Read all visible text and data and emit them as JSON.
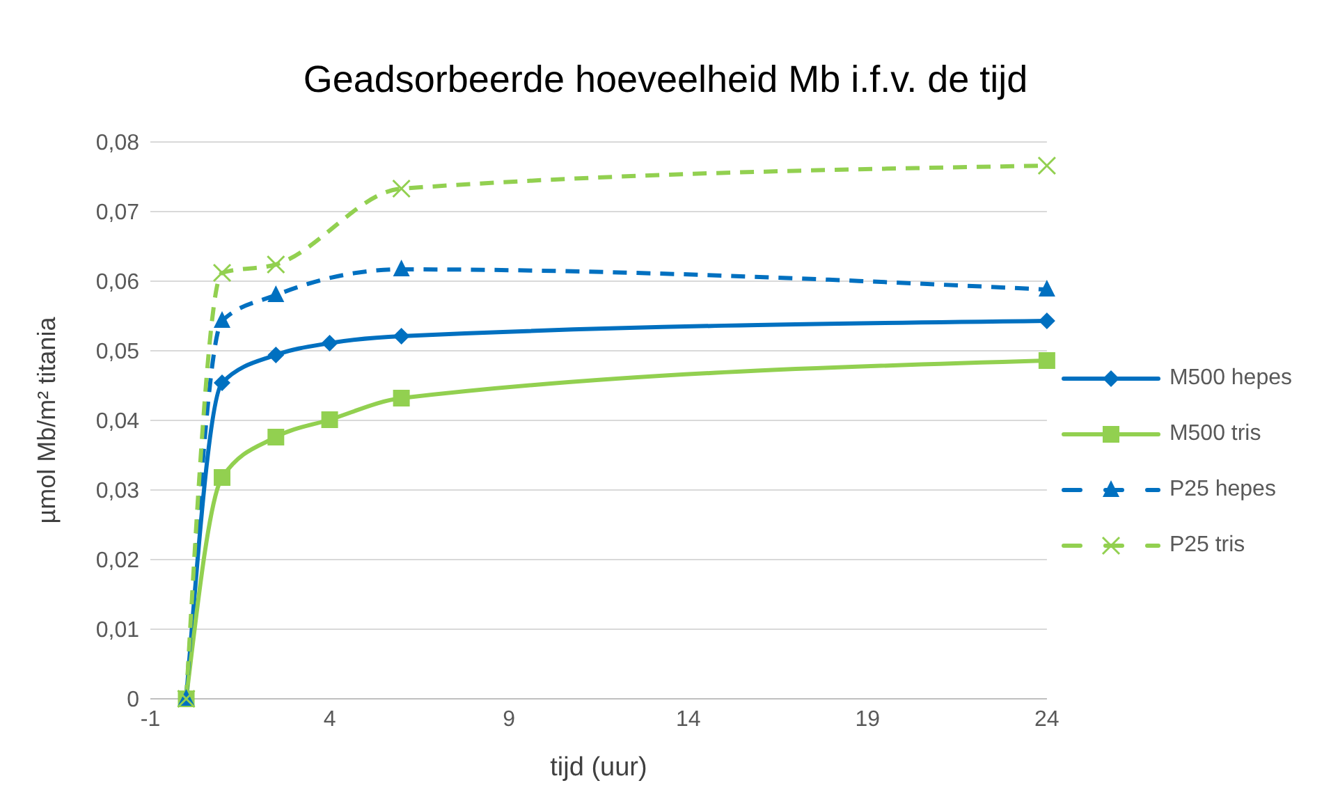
{
  "chart_data": {
    "type": "line",
    "title": "Geadsorbeerde hoeveelheid Mb i.f.v. de tijd",
    "xlabel": "tijd (uur)",
    "ylabel": "µmol Mb/m² titania",
    "xlim": [
      -1,
      24
    ],
    "xticks": [
      -1,
      4,
      9,
      14,
      19,
      24
    ],
    "ylim": [
      0,
      0.08
    ],
    "yticks": [
      {
        "value": 0,
        "label": "0"
      },
      {
        "value": 0.01,
        "label": "0,01"
      },
      {
        "value": 0.02,
        "label": "0,02"
      },
      {
        "value": 0.03,
        "label": "0,03"
      },
      {
        "value": 0.04,
        "label": "0,04"
      },
      {
        "value": 0.05,
        "label": "0,05"
      },
      {
        "value": 0.06,
        "label": "0,06"
      },
      {
        "value": 0.07,
        "label": "0,07"
      },
      {
        "value": 0.08,
        "label": "0,08"
      }
    ],
    "grid": "y",
    "legend": "right",
    "series": [
      {
        "name": "M500 hepes",
        "color": "#0070c0",
        "marker": "diamond",
        "line_style": "solid",
        "x": [
          0,
          1,
          2.5,
          4,
          6,
          24
        ],
        "values": [
          0,
          0.0454,
          0.0494,
          0.0511,
          0.0521,
          0.0543
        ]
      },
      {
        "name": "M500 tris",
        "color": "#92d050",
        "marker": "square",
        "line_style": "solid",
        "x": [
          0,
          1,
          2.5,
          4,
          6,
          24
        ],
        "values": [
          0,
          0.0318,
          0.0376,
          0.0401,
          0.0432,
          0.0486
        ]
      },
      {
        "name": "P25 hepes",
        "color": "#0070c0",
        "marker": "triangle",
        "line_style": "dashed",
        "x": [
          0,
          1,
          2.5,
          6,
          24
        ],
        "values": [
          0,
          0.0543,
          0.058,
          0.0617,
          0.0588
        ]
      },
      {
        "name": "P25 tris",
        "color": "#92d050",
        "marker": "cross",
        "line_style": "dashed",
        "x": [
          0,
          1,
          2.5,
          6,
          24
        ],
        "values": [
          0,
          0.0612,
          0.0624,
          0.0733,
          0.0766
        ]
      }
    ]
  }
}
